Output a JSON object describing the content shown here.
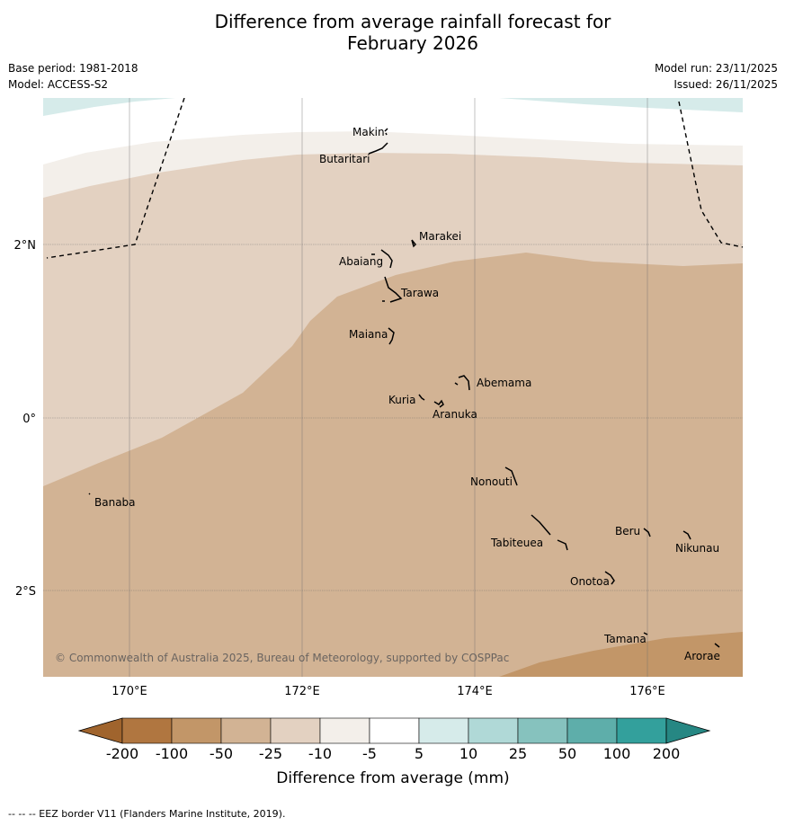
{
  "title_line1": "Difference from average rainfall forecast for",
  "title_line2": "February 2026",
  "base_period": "Base period: 1981-2018",
  "model": "Model: ACCESS-S2",
  "model_run": "Model run: 23/11/2025",
  "issued": "Issued: 26/11/2025",
  "copyright": "© Commonwealth of Australia 2025, Bureau of Meteorology, supported by COSPPac",
  "lat_labels": [
    "2°N",
    "0°",
    "2°S"
  ],
  "lon_labels": [
    "170°E",
    "172°E",
    "174°E",
    "176°E"
  ],
  "places": [
    {
      "name": "Makin"
    },
    {
      "name": "Butaritari"
    },
    {
      "name": "Marakei"
    },
    {
      "name": "Abaiang"
    },
    {
      "name": "Tarawa"
    },
    {
      "name": "Maiana"
    },
    {
      "name": "Abemama"
    },
    {
      "name": "Kuria"
    },
    {
      "name": "Aranuka"
    },
    {
      "name": "Nonouti"
    },
    {
      "name": "Banaba"
    },
    {
      "name": "Beru"
    },
    {
      "name": "Nikunau"
    },
    {
      "name": "Tabiteuea"
    },
    {
      "name": "Onotoa"
    },
    {
      "name": "Tamana"
    },
    {
      "name": "Arorae"
    }
  ],
  "colorbar": {
    "ticks": [
      "-200",
      "-100",
      "-50",
      "-25",
      "-10",
      "-5",
      "5",
      "10",
      "25",
      "50",
      "100",
      "200"
    ],
    "colors": [
      "#a0642d",
      "#b07640",
      "#c29668",
      "#d2b394",
      "#e3d1c1",
      "#f3efea",
      "#ffffff",
      "#d6ebea",
      "#b0d9d7",
      "#86c2be",
      "#5eaeaa",
      "#33a09c",
      "#268783"
    ],
    "label": "Difference from average (mm)"
  },
  "footnote": "--  --  -- EEZ border V11 (Flanders Marine Institute, 2019)."
}
